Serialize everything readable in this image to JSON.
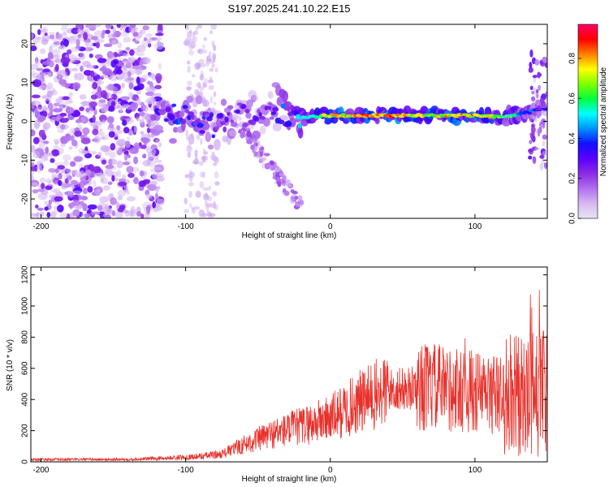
{
  "title": "S197.2025.241.10.22.E15",
  "chart_data": [
    {
      "type": "heatmap",
      "name": "spectrogram",
      "title": "S197.2025.241.10.22.E15",
      "xlabel": "Height of straight line (km)",
      "ylabel": "Frequency (Hz)",
      "xlim": [
        -207,
        150
      ],
      "ylim": [
        -25,
        25
      ],
      "xticks": [
        -200,
        -100,
        0,
        100
      ],
      "yticks": [
        -20,
        -10,
        0,
        10,
        20
      ],
      "colorbar": {
        "label": "Normalized spectral amplitude",
        "range": [
          0,
          0.97
        ],
        "ticks": [
          0.0,
          0.2,
          0.4,
          0.6,
          0.8
        ],
        "stops": [
          "#e6e6f5",
          "#d6b8f0",
          "#b070f0",
          "#8a2be2",
          "#5a00ff",
          "#1010ff",
          "#0090ff",
          "#00ffff",
          "#00ff40",
          "#7fff00",
          "#ffff00",
          "#ff8000",
          "#ff0000",
          "#ff0066"
        ]
      },
      "band": [
        {
          "x": -120,
          "f": 2.0,
          "a": 0.35
        },
        {
          "x": -100,
          "f": 1.0,
          "a": 0.4
        },
        {
          "x": -80,
          "f": -1.0,
          "a": 0.35
        },
        {
          "x": -60,
          "f": 2.0,
          "a": 0.3
        },
        {
          "x": -40,
          "f": 3.0,
          "a": 0.3
        },
        {
          "x": -20,
          "f": 1.0,
          "a": 0.55
        },
        {
          "x": 0,
          "f": 1.5,
          "a": 0.8
        },
        {
          "x": 20,
          "f": 1.5,
          "a": 0.85
        },
        {
          "x": 40,
          "f": 1.5,
          "a": 0.9
        },
        {
          "x": 60,
          "f": 1.5,
          "a": 0.75
        },
        {
          "x": 80,
          "f": 1.5,
          "a": 0.8
        },
        {
          "x": 100,
          "f": 1.5,
          "a": 0.85
        },
        {
          "x": 120,
          "f": 1.0,
          "a": 0.7
        },
        {
          "x": 145,
          "f": 3.0,
          "a": 0.35
        }
      ]
    },
    {
      "type": "line",
      "name": "snr",
      "xlabel": "Height of straight line (km)",
      "ylabel": "SNR (10 * v/v)",
      "xlim": [
        -207,
        150
      ],
      "ylim": [
        0,
        1250
      ],
      "xticks": [
        -200,
        -100,
        0,
        100
      ],
      "yticks": [
        0,
        200,
        400,
        600,
        800,
        1000,
        1200
      ],
      "color": "#e8302a",
      "envelope": {
        "x": [
          -207,
          -140,
          -110,
          -90,
          -75,
          -60,
          -40,
          -20,
          0,
          20,
          40,
          55,
          65,
          80,
          100,
          115,
          130,
          140,
          150
        ],
        "y": [
          15,
          15,
          25,
          35,
          50,
          110,
          180,
          230,
          280,
          380,
          460,
          470,
          480,
          470,
          450,
          430,
          420,
          430,
          430
        ]
      }
    }
  ],
  "colors": {
    "line": "#e8302a",
    "axis": "#000000"
  }
}
